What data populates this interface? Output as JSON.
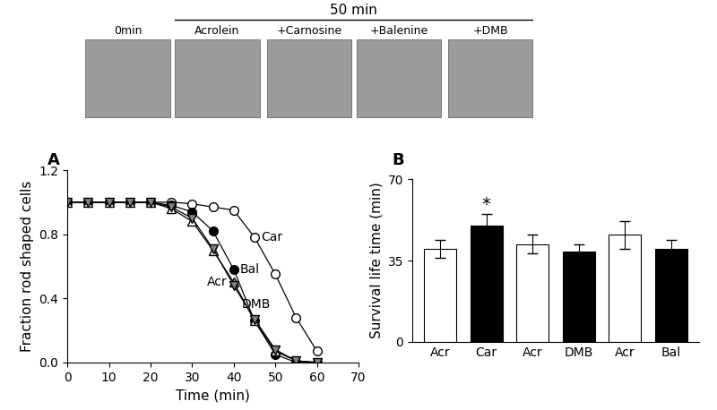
{
  "images": {
    "title": "50 min",
    "labels": [
      "0min",
      "Acrolein",
      "+Carnosine",
      "+Balenine",
      "+DMB"
    ]
  },
  "chart_data": [
    {
      "type": "line",
      "panel": "A",
      "x": [
        0,
        5,
        10,
        15,
        20,
        25,
        30,
        35,
        40,
        45,
        50,
        55,
        60
      ],
      "xlabel": "Time (min)",
      "ylabel": "Fraction rod shaped cells",
      "xlim": [
        0,
        70
      ],
      "xticks": [
        0,
        10,
        20,
        30,
        40,
        50,
        60,
        70
      ],
      "ylim": [
        0,
        1.2
      ],
      "yticks": [
        {
          "value": 0,
          "label": "0.0"
        },
        {
          "value": 0.4,
          "label": "0.4"
        },
        {
          "value": 0.8,
          "label": "0.8"
        },
        {
          "value": 1.2,
          "label": "1.2"
        }
      ],
      "series": [
        {
          "name": "Car",
          "color": "white",
          "marker": "o",
          "values": [
            1,
            1,
            1,
            1,
            1,
            1,
            0.99,
            0.97,
            0.95,
            0.78,
            0.55,
            0.28,
            0.07
          ]
        },
        {
          "name": "Bal",
          "color": "black",
          "marker": "o",
          "values": [
            1,
            1,
            1,
            1,
            1,
            0.98,
            0.94,
            0.82,
            0.58,
            0.26,
            0.05,
            0.0,
            0.0
          ]
        },
        {
          "name": "Acr",
          "color": "white",
          "marker": "^",
          "values": [
            1,
            1,
            1,
            1,
            1,
            0.96,
            0.88,
            0.7,
            0.5,
            0.26,
            0.07,
            0.01,
            0.0
          ]
        },
        {
          "name": "DMB",
          "color": "#808080",
          "marker": "v",
          "values": [
            1,
            1,
            1,
            1,
            1,
            0.97,
            0.9,
            0.71,
            0.48,
            0.27,
            0.08,
            0.01,
            0.0
          ]
        }
      ]
    },
    {
      "type": "bar",
      "panel": "B",
      "categories": [
        "Acr",
        "Car",
        "Acr",
        "DMB",
        "Acr",
        "Bal"
      ],
      "values": [
        40,
        50,
        42,
        39,
        46,
        40
      ],
      "errors": [
        4,
        5,
        4,
        3,
        6,
        4
      ],
      "colors": [
        "white",
        "black",
        "white",
        "black",
        "white",
        "black"
      ],
      "ylabel": "Survival life time (min)",
      "ylim": [
        0,
        70
      ],
      "yticks": [
        0,
        35,
        70
      ],
      "annotations": [
        {
          "index": 1,
          "text": "*"
        }
      ]
    }
  ]
}
